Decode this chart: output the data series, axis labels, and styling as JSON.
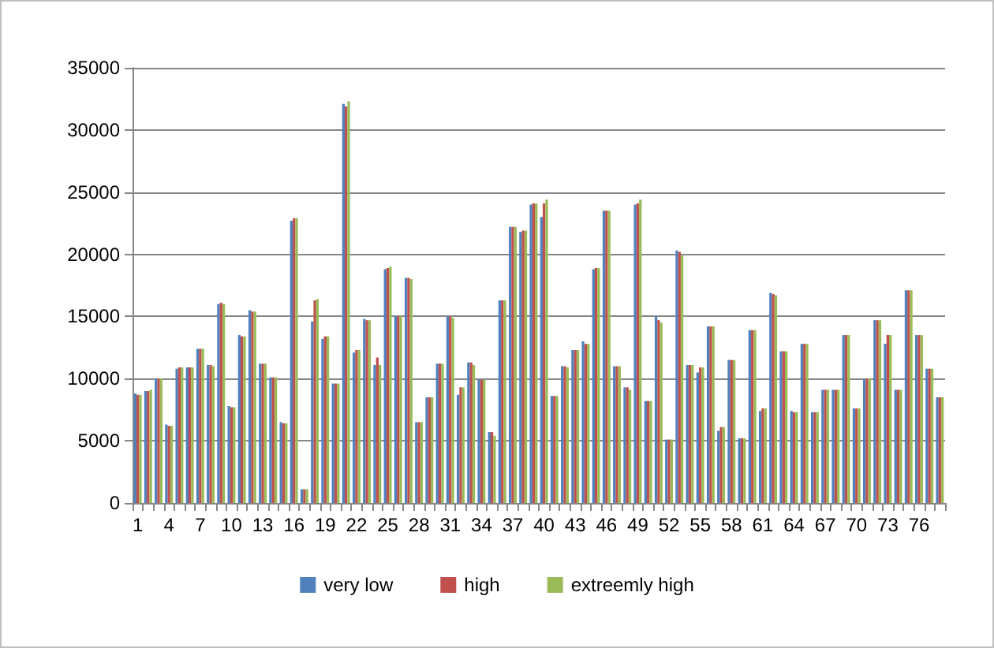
{
  "chart_data": {
    "type": "bar",
    "categories": [
      "1",
      null,
      null,
      "4",
      null,
      null,
      "7",
      null,
      null,
      "10",
      null,
      null,
      "13",
      null,
      null,
      "16",
      null,
      null,
      "19",
      null,
      null,
      "22",
      null,
      null,
      "25",
      null,
      null,
      "28",
      null,
      null,
      "31",
      null,
      null,
      "34",
      null,
      null,
      "37",
      null,
      null,
      "40",
      null,
      null,
      "43",
      null,
      null,
      "46",
      null,
      null,
      "49",
      null,
      null,
      "52",
      null,
      null,
      "55",
      null,
      null,
      "58",
      null,
      null,
      "61",
      null,
      null,
      "64",
      null,
      null,
      "67",
      null,
      null,
      "70",
      null,
      null,
      "73",
      null,
      null,
      "76",
      null,
      null
    ],
    "series": [
      {
        "name": "very low",
        "color": "#4f81bd",
        "values": [
          8800,
          9000,
          10000,
          6300,
          10800,
          10900,
          12400,
          11100,
          16000,
          7800,
          13500,
          15500,
          11200,
          10100,
          6500,
          22700,
          1100,
          14600,
          13200,
          9600,
          32100,
          12100,
          14800,
          11100,
          18800,
          15000,
          18100,
          6500,
          8500,
          11200,
          15000,
          8700,
          11300,
          9900,
          5700,
          16300,
          22200,
          21800,
          24000,
          23000,
          8600,
          11000,
          12300,
          13000,
          18800,
          23500,
          11000,
          9300,
          24000,
          8200,
          15000,
          5100,
          20300,
          11100,
          10500,
          14200,
          5800,
          11500,
          5200,
          13900,
          7400,
          16900,
          12200,
          7400,
          12800,
          7300,
          9100,
          9100,
          13500,
          7600,
          10000,
          14700,
          12800,
          9100,
          17100,
          13500,
          10800,
          8500
        ]
      },
      {
        "name": "high",
        "color": "#c0504d",
        "values": [
          8700,
          9000,
          10000,
          6200,
          10900,
          10900,
          12400,
          11100,
          16100,
          7700,
          13400,
          15400,
          11200,
          10100,
          6400,
          22900,
          1100,
          16300,
          13400,
          9600,
          31900,
          12300,
          14700,
          11700,
          18900,
          15000,
          18100,
          6500,
          8500,
          11200,
          15000,
          9300,
          11300,
          9900,
          5700,
          16300,
          22200,
          21900,
          24100,
          24100,
          8600,
          11000,
          12300,
          12800,
          18900,
          23500,
          11000,
          9300,
          24100,
          8200,
          14700,
          5100,
          20200,
          11100,
          10900,
          14200,
          6100,
          11500,
          5200,
          13900,
          7600,
          16800,
          12200,
          7300,
          12800,
          7300,
          9100,
          9100,
          13500,
          7600,
          10000,
          14700,
          13500,
          9100,
          17100,
          13500,
          10800,
          8500
        ]
      },
      {
        "name": "extreemly high",
        "color": "#9bbb59",
        "values": [
          8700,
          9100,
          10000,
          6200,
          10900,
          10900,
          12400,
          11000,
          16000,
          7700,
          13400,
          15400,
          11200,
          10100,
          6400,
          22900,
          1100,
          16400,
          13400,
          9600,
          32300,
          12300,
          14700,
          11100,
          19000,
          15000,
          18000,
          6500,
          8500,
          11200,
          14900,
          9300,
          11100,
          9900,
          5400,
          16300,
          22200,
          21900,
          24100,
          24400,
          8600,
          10900,
          12300,
          12800,
          18900,
          23500,
          11000,
          9100,
          24400,
          8200,
          14500,
          5100,
          19900,
          11100,
          10900,
          14200,
          6100,
          11500,
          5200,
          13900,
          7600,
          16700,
          12200,
          7300,
          12800,
          7300,
          9100,
          9100,
          13500,
          7600,
          10000,
          14700,
          13500,
          9100,
          17100,
          13500,
          10800,
          8500
        ]
      }
    ],
    "ylim": [
      0,
      35000
    ],
    "yticks": [
      0,
      5000,
      10000,
      15000,
      20000,
      25000,
      30000,
      35000
    ],
    "grid": "y",
    "legend": "bottom"
  }
}
